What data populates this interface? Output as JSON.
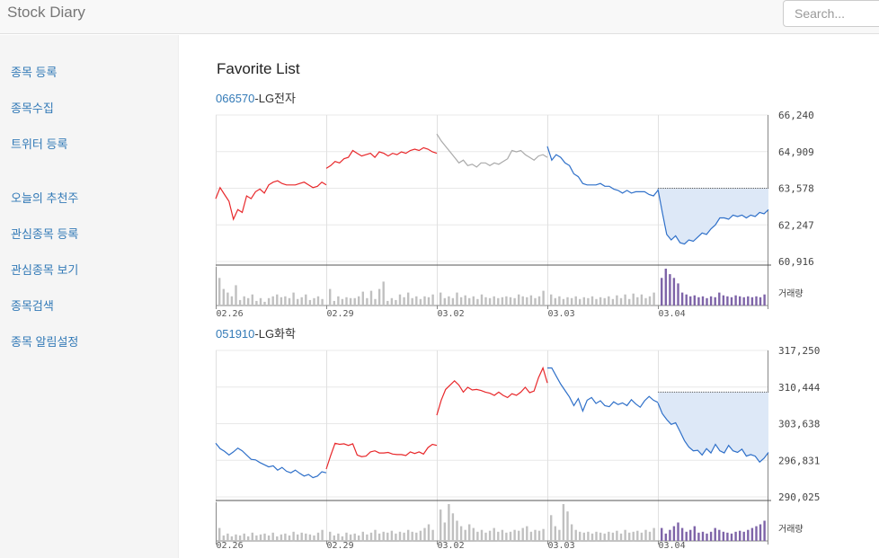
{
  "header": {
    "brand": "Stock Diary",
    "search_placeholder": "Search..."
  },
  "sidebar": {
    "items": [
      {
        "label": "종목 등록"
      },
      {
        "label": "종목수집"
      },
      {
        "label": "트위터 등록"
      },
      {
        "label": "오늘의 추천주"
      },
      {
        "label": "관심종목 등록"
      },
      {
        "label": "관심종목 보기"
      },
      {
        "label": "종목검색"
      },
      {
        "label": "종목 알림설정"
      }
    ]
  },
  "main": {
    "title": "Favorite List"
  },
  "colors": {
    "up": "#e8282b",
    "down": "#2f70c9",
    "neutral": "#aaaaaa",
    "today_volume": "#7e64a8",
    "today_area": "#dde8f7",
    "link": "#337ab7"
  },
  "chart_data": [
    {
      "type": "line",
      "code": "066570",
      "name": "-LG전자",
      "dates": [
        "02.26",
        "02.29",
        "03.02",
        "03.03",
        "03.04"
      ],
      "y_ticks": [
        "66,240",
        "64,909",
        "63,578",
        "62,247",
        "60,916"
      ],
      "ylim": [
        60916,
        66240
      ],
      "volume_label": "거래량",
      "previous_close": 63578,
      "days": [
        {
          "date": "02.26",
          "color": "up",
          "values": [
            63200,
            63600,
            63350,
            63100,
            62450,
            62800,
            62700,
            63300,
            63200,
            63450,
            63550,
            63400,
            63700,
            63800,
            63850,
            63750,
            63700,
            63700,
            63700,
            63750,
            63800,
            63700,
            63600,
            63650,
            63800,
            63700
          ]
        },
        {
          "date": "02.29",
          "color": "up",
          "values": [
            64300,
            64400,
            64550,
            64500,
            64650,
            64700,
            64950,
            64850,
            64750,
            64800,
            64850,
            64700,
            64900,
            64850,
            64750,
            64850,
            64800,
            64900,
            64850,
            64950,
            65000,
            64950,
            65050,
            65000,
            64900,
            64850
          ]
        },
        {
          "date": "03.02",
          "color": "neutral",
          "values": [
            65550,
            65300,
            65100,
            64900,
            64700,
            64500,
            64600,
            64400,
            64450,
            64350,
            64500,
            64500,
            64400,
            64500,
            64450,
            64550,
            64650,
            64950,
            64900,
            64950,
            64800,
            64700,
            64600,
            64750,
            64800,
            64700
          ]
        },
        {
          "date": "03.03",
          "color": "down",
          "values": [
            65100,
            64600,
            64800,
            64700,
            64500,
            64400,
            64100,
            64000,
            63750,
            63700,
            63700,
            63700,
            63750,
            63650,
            63650,
            63550,
            63500,
            63400,
            63500,
            63400,
            63450,
            63450,
            63450,
            63350,
            63300,
            63500
          ]
        },
        {
          "date": "03.04",
          "color": "down",
          "values": [
            63550,
            62700,
            61900,
            61700,
            61850,
            61600,
            61550,
            61700,
            61650,
            61800,
            61950,
            61900,
            62100,
            62250,
            62500,
            62500,
            62450,
            62600,
            62550,
            62600,
            62500,
            62600,
            62550,
            62700,
            62650,
            62800
          ]
        }
      ],
      "volumes": [
        [
          30,
          18,
          14,
          10,
          22,
          6,
          10,
          8,
          12,
          5,
          8,
          4,
          8,
          10,
          12,
          9,
          10,
          8,
          14,
          7,
          9,
          12,
          6,
          8,
          10,
          7
        ],
        [
          18,
          5,
          10,
          7,
          9,
          8,
          8,
          10,
          15,
          8,
          16,
          7,
          18,
          26,
          5,
          8,
          6,
          12,
          9,
          14,
          8,
          10,
          7,
          10,
          9,
          12
        ],
        [
          14,
          8,
          10,
          8,
          14,
          9,
          11,
          8,
          10,
          7,
          12,
          9,
          8,
          10,
          8,
          9,
          10,
          9,
          8,
          12,
          10,
          9,
          11,
          8,
          10,
          16
        ],
        [
          12,
          8,
          10,
          7,
          9,
          8,
          10,
          7,
          9,
          8,
          10,
          7,
          9,
          8,
          10,
          7,
          11,
          8,
          12,
          7,
          13,
          9,
          12,
          8,
          10,
          14
        ],
        [
          30,
          40,
          34,
          30,
          24,
          14,
          12,
          10,
          11,
          9,
          10,
          8,
          10,
          9,
          14,
          11,
          10,
          9,
          11,
          10,
          9,
          10,
          9,
          10,
          9,
          12
        ]
      ]
    },
    {
      "type": "line",
      "code": "051910",
      "name": "-LG화학",
      "dates": [
        "02.26",
        "02.29",
        "03.02",
        "03.03",
        "03.04"
      ],
      "y_ticks": [
        "317,250",
        "310,444",
        "303,638",
        "296,831",
        "290,025"
      ],
      "ylim": [
        290025,
        317250
      ],
      "volume_label": "거래량",
      "previous_close": 309500,
      "days": [
        {
          "date": "02.26",
          "color": "down",
          "values": [
            300000,
            299000,
            298500,
            297800,
            298400,
            299100,
            298600,
            297800,
            297000,
            296900,
            296400,
            296000,
            295600,
            295800,
            295000,
            295500,
            294800,
            294500,
            295000,
            294400,
            293900,
            294200,
            293600,
            293900,
            294700,
            294500
          ]
        },
        {
          "date": "02.29",
          "color": "up",
          "values": [
            295200,
            297700,
            300000,
            299800,
            299900,
            299600,
            299900,
            297800,
            297500,
            297600,
            298400,
            298600,
            298200,
            298200,
            298300,
            298000,
            297900,
            297900,
            297700,
            298400,
            298100,
            298400,
            298000,
            299200,
            299800,
            299600
          ]
        },
        {
          "date": "03.02",
          "color": "up",
          "values": [
            305200,
            308000,
            310000,
            310800,
            311600,
            310800,
            309500,
            310400,
            309900,
            310000,
            309800,
            309500,
            309300,
            308900,
            309500,
            308900,
            308500,
            309200,
            308900,
            309500,
            310400,
            309400,
            309700,
            312200,
            314000,
            311200
          ]
        },
        {
          "date": "03.03",
          "color": "down",
          "values": [
            314000,
            314000,
            312500,
            311000,
            309800,
            308600,
            307000,
            308300,
            306000,
            308000,
            308500,
            307400,
            307900,
            307000,
            306800,
            307700,
            307200,
            307500,
            307000,
            308100,
            307300,
            306700,
            307900,
            308700,
            308000,
            307600
          ]
        },
        {
          "date": "03.04",
          "color": "down",
          "values": [
            307500,
            305500,
            304400,
            303500,
            303800,
            302200,
            300500,
            299300,
            298600,
            298700,
            297800,
            299000,
            298200,
            299800,
            298600,
            298200,
            299600,
            298600,
            298300,
            298900,
            297600,
            297900,
            297600,
            296500,
            297200,
            298300
          ]
        }
      ],
      "volumes": [
        [
          14,
          6,
          8,
          5,
          7,
          6,
          8,
          5,
          9,
          6,
          7,
          8,
          6,
          9,
          5,
          7,
          8,
          6,
          10,
          7,
          9,
          8,
          7,
          6,
          9,
          12
        ],
        [
          10,
          6,
          8,
          5,
          9,
          7,
          8,
          6,
          10,
          7,
          9,
          12,
          8,
          10,
          9,
          11,
          8,
          10,
          9,
          12,
          10,
          9,
          11,
          14,
          18,
          12
        ],
        [
          34,
          20,
          40,
          30,
          22,
          16,
          12,
          18,
          14,
          10,
          12,
          9,
          11,
          14,
          10,
          12,
          9,
          10,
          12,
          11,
          14,
          16,
          10,
          12,
          11,
          13
        ],
        [
          28,
          16,
          12,
          40,
          32,
          18,
          12,
          10,
          9,
          10,
          8,
          10,
          9,
          8,
          10,
          9,
          11,
          8,
          12,
          9,
          10,
          11,
          9,
          12,
          10,
          14
        ],
        [
          14,
          8,
          12,
          16,
          20,
          14,
          10,
          12,
          16,
          9,
          10,
          8,
          10,
          14,
          12,
          10,
          9,
          8,
          10,
          11,
          10,
          12,
          14,
          16,
          18,
          22
        ]
      ]
    }
  ]
}
